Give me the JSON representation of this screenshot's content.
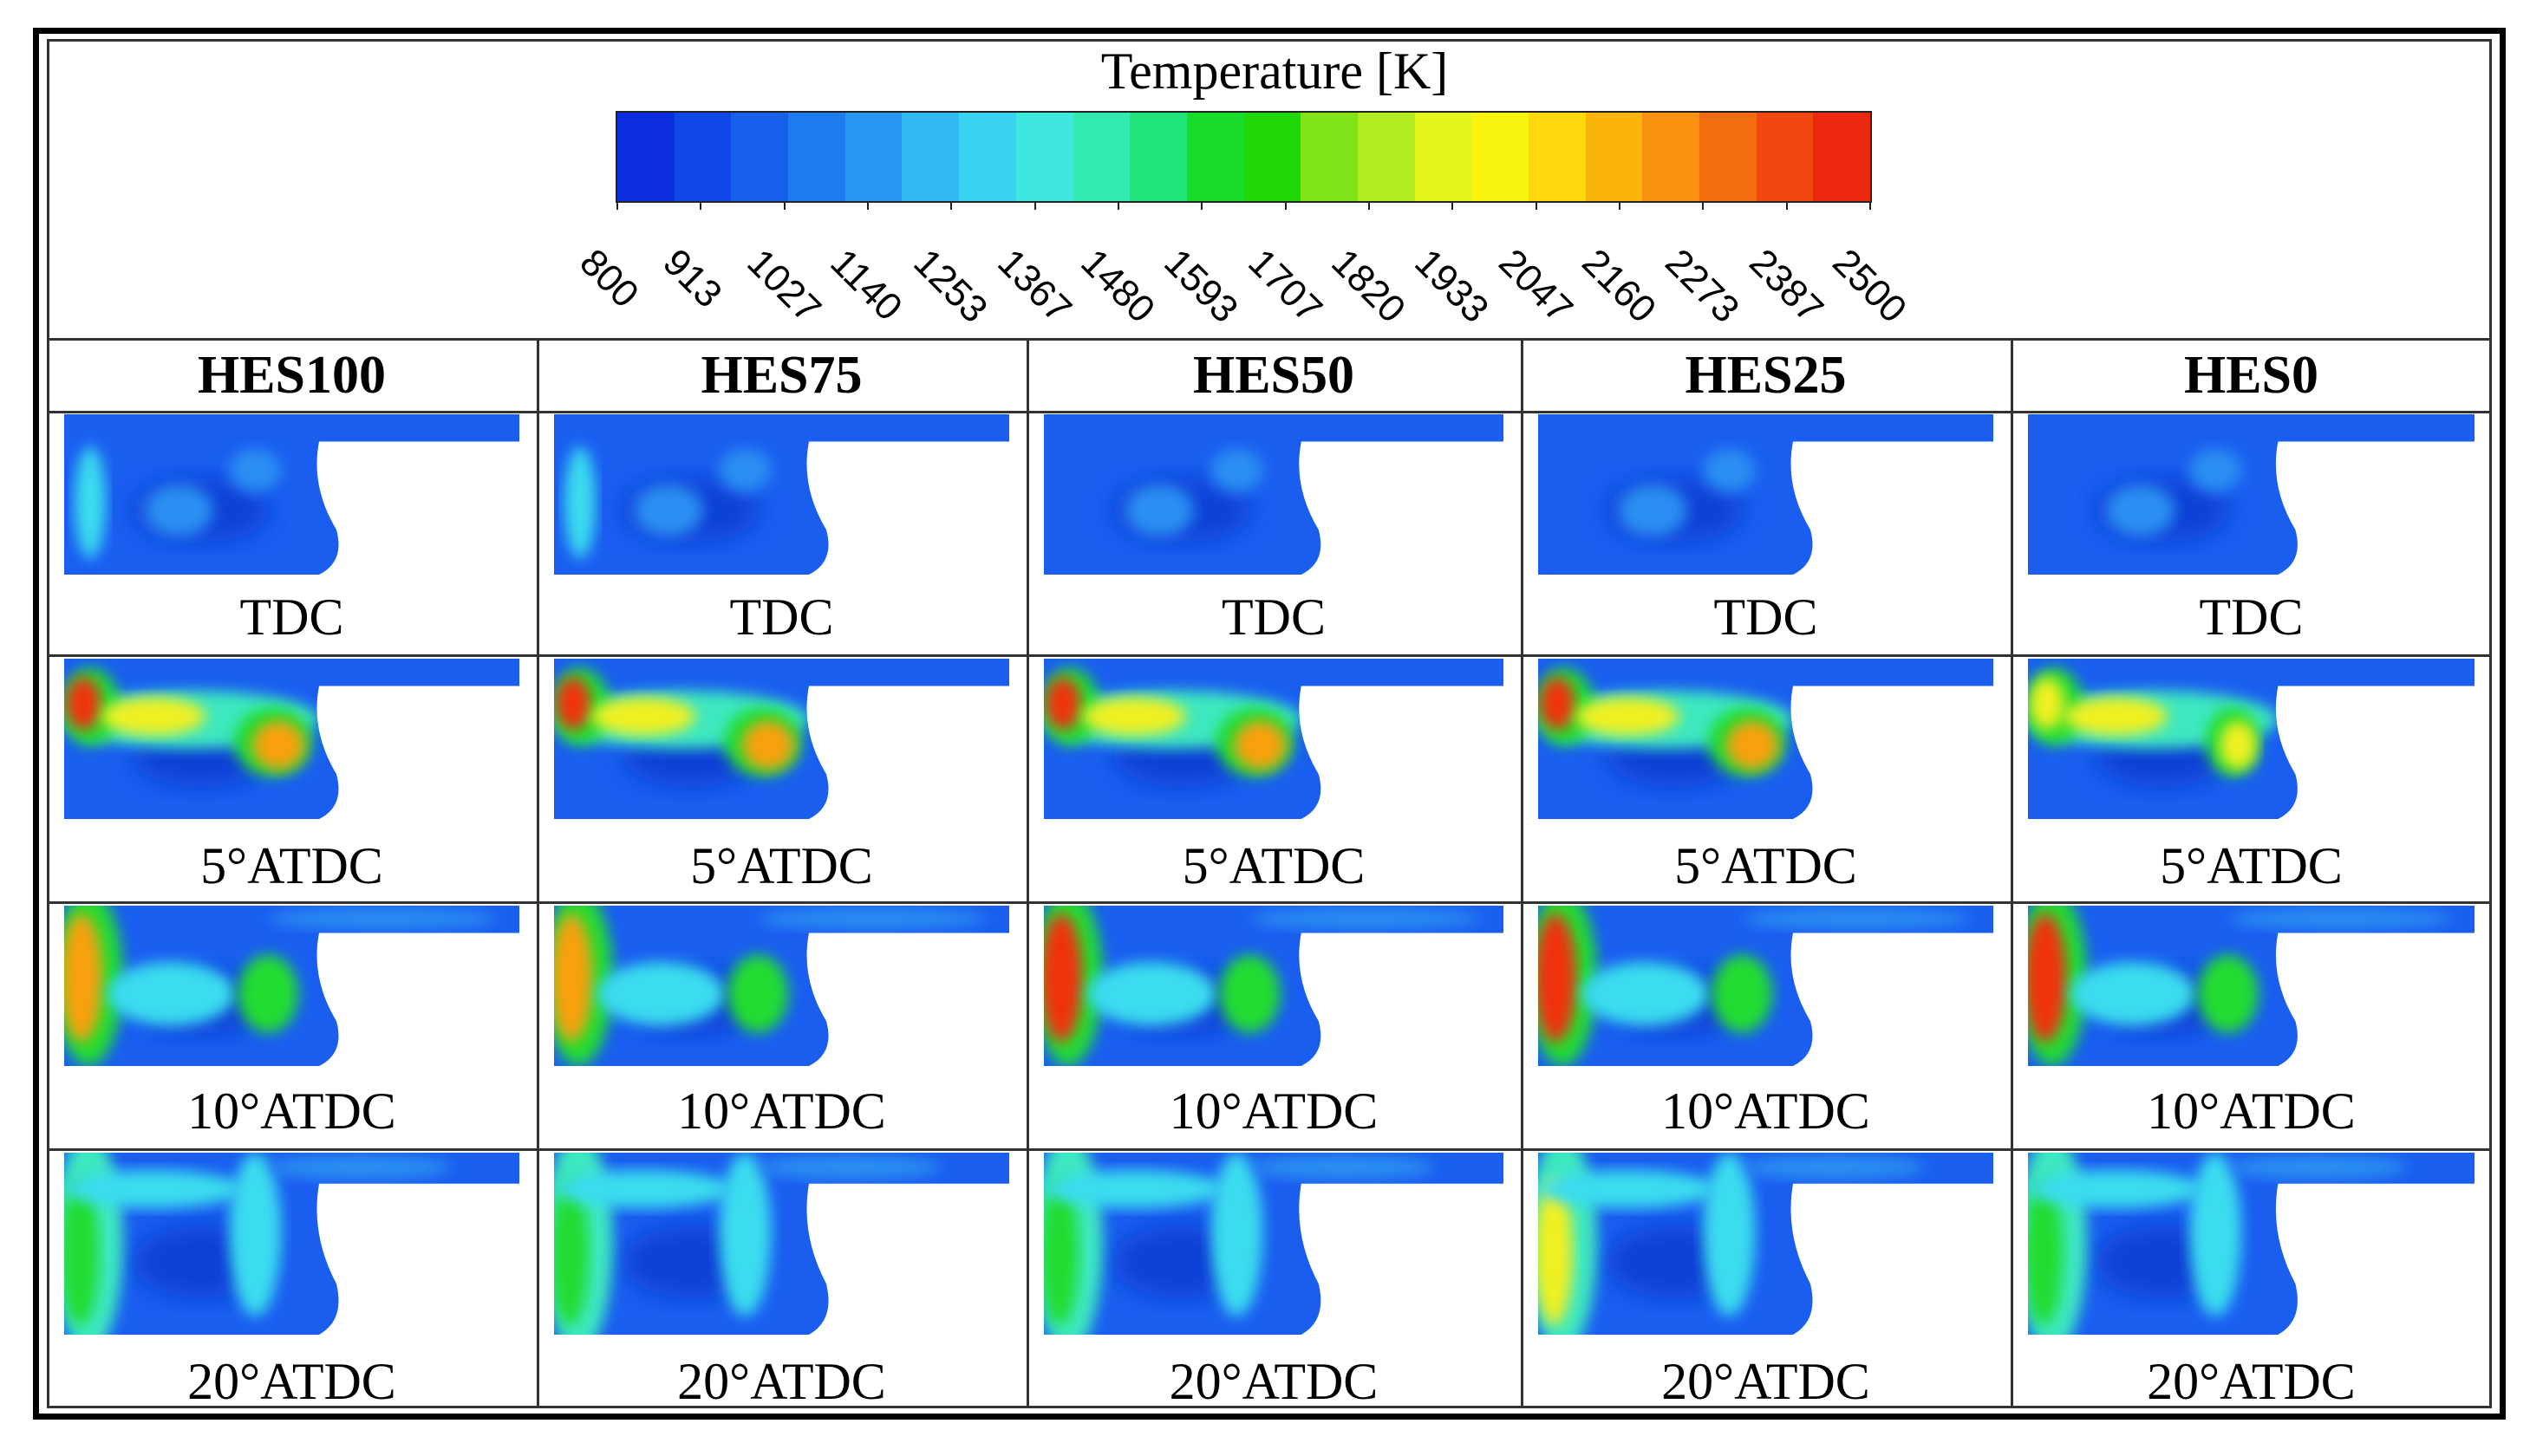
{
  "legend": {
    "title": "Temperature [K]",
    "ticks": [
      "800",
      "913",
      "1027",
      "1140",
      "1253",
      "1367",
      "1480",
      "1593",
      "1707",
      "1820",
      "1933",
      "2047",
      "2160",
      "2273",
      "2387",
      "2500"
    ],
    "colors": [
      "#0a2de0",
      "#1048e8",
      "#1660ec",
      "#1f7cf0",
      "#2a98f2",
      "#33b8f4",
      "#3ad4f2",
      "#3ee8de",
      "#32eab0",
      "#20e478",
      "#18dc2a",
      "#20d808",
      "#80e418",
      "#b0ec20",
      "#e4f41c",
      "#f8f410",
      "#fcd80c",
      "#fab40c",
      "#f89010",
      "#f46c10",
      "#f04810",
      "#ec2810"
    ]
  },
  "columns": [
    "HES100",
    "HES75",
    "HES50",
    "HES25",
    "HES0"
  ],
  "rows": [
    "TDC",
    "5°ATDC",
    "10°ATDC",
    "20°ATDC"
  ],
  "image_labels": [
    [
      "TDC",
      "TDC",
      "TDC",
      "TDC",
      "TDC"
    ],
    [
      "5°ATDC",
      "5°ATDC",
      "5°ATDC",
      "5°ATDC",
      "5°ATDC"
    ],
    [
      "10°ATDC",
      "10°ATDC",
      "10°ATDC",
      "10°ATDC",
      "10°ATDC"
    ],
    [
      "20°ATDC",
      "20°ATDC",
      "20°ATDC",
      "20°ATDC",
      "20°ATDC"
    ]
  ]
}
